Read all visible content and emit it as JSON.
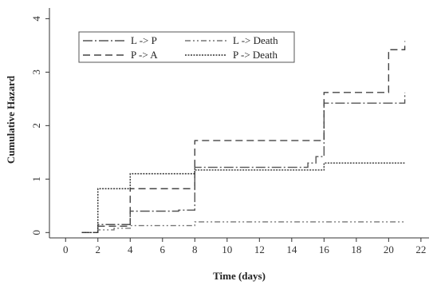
{
  "chart_data": {
    "type": "line",
    "step": true,
    "title": "",
    "xlabel": "Time (days)",
    "ylabel": "Cumulative  Hazard",
    "xlim": [
      -1,
      22.5
    ],
    "ylim": [
      -0.1,
      4.2
    ],
    "xticks": [
      0,
      2,
      4,
      6,
      8,
      10,
      12,
      14,
      16,
      18,
      20,
      22
    ],
    "yticks": [
      0,
      1,
      2,
      3,
      4
    ],
    "grid": false,
    "legend_position": "top-left",
    "series": [
      {
        "name": "L -> P",
        "color": "#555555",
        "dash": "12,3,2,3",
        "x": [
          1,
          2,
          4,
          5,
          7,
          8,
          15,
          15.5,
          16,
          20,
          21
        ],
        "y": [
          0,
          0.15,
          0.4,
          0.4,
          0.42,
          1.22,
          1.3,
          1.42,
          2.42,
          2.42,
          2.62
        ]
      },
      {
        "name": "L -> Death",
        "color": "#777777",
        "dash": "7,3,2,3,2,3",
        "x": [
          1,
          2,
          3,
          4,
          8,
          21
        ],
        "y": [
          0,
          0.05,
          0.08,
          0.13,
          0.2,
          0.2
        ]
      },
      {
        "name": "P -> A",
        "color": "#444444",
        "dash": "9,5",
        "x": [
          1,
          2,
          4,
          8,
          16,
          20,
          21
        ],
        "y": [
          0,
          0.12,
          0.82,
          1.72,
          2.62,
          3.42,
          3.58
        ]
      },
      {
        "name": "P -> Death",
        "color": "#333333",
        "dash": "2,1.5",
        "x": [
          1,
          2,
          4,
          8,
          16,
          21
        ],
        "y": [
          0,
          0.82,
          1.1,
          1.17,
          1.3,
          1.3
        ]
      }
    ]
  }
}
